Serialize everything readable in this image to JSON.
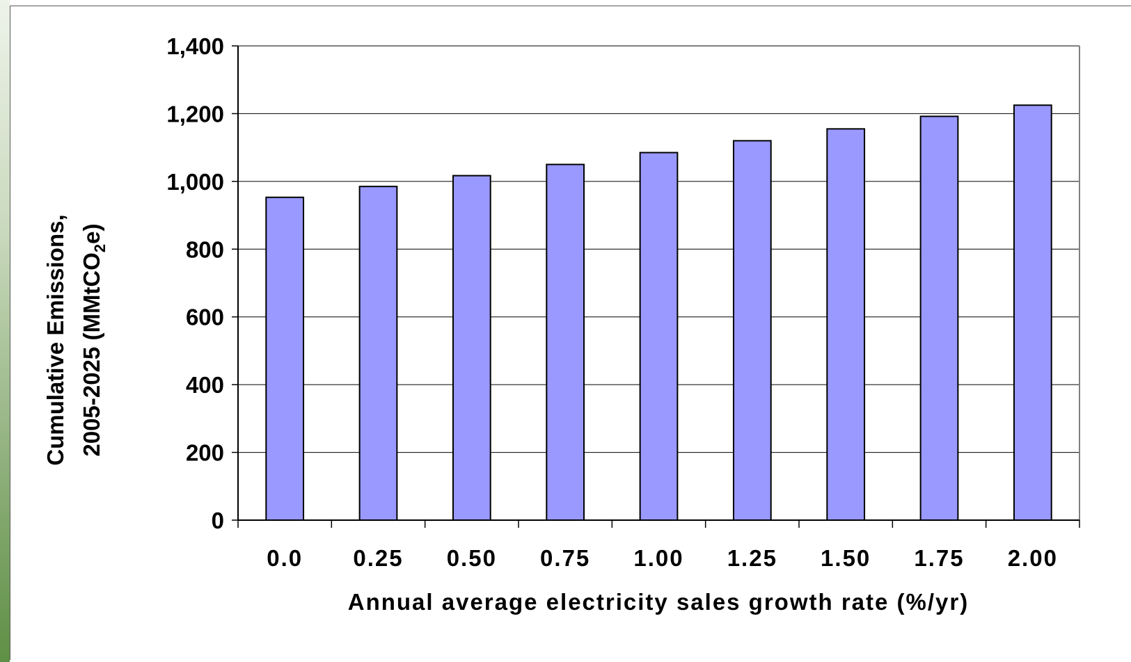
{
  "chart_data": {
    "type": "bar",
    "categories": [
      "0.0",
      "0.25",
      "0.50",
      "0.75",
      "1.00",
      "1.25",
      "1.50",
      "1.75",
      "2.00"
    ],
    "values": [
      953,
      985,
      1017,
      1050,
      1085,
      1120,
      1155,
      1192,
      1225
    ],
    "xlabel": "Annual average electricity sales growth rate (%/yr)",
    "ylabel_line1": "Cumulative Emissions,",
    "ylabel_line2_prefix": "2005-2025 (MMtCO",
    "ylabel_line2_sub": "2",
    "ylabel_line2_suffix": "e)",
    "ylim": [
      0,
      1400
    ],
    "yticks": [
      0,
      200,
      400,
      600,
      800,
      1000,
      1200,
      1400
    ],
    "ytick_labels": [
      "0",
      "200",
      "400",
      "600",
      "800",
      "1,000",
      "1,200",
      "1,400"
    ],
    "grid": true,
    "legend": "none",
    "bar_color": "#9999ff",
    "bar_edge_color": "#000000"
  }
}
